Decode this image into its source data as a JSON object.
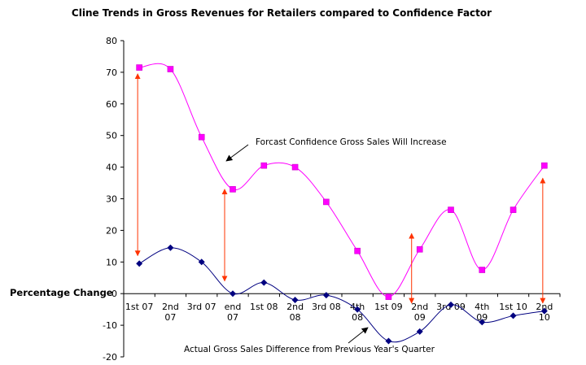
{
  "chart_data": {
    "type": "line",
    "title": "Cline Trends in Gross Revenues for Retailers compared to Confidence Factor",
    "ylabel": "Percentage Change",
    "xlabel": "",
    "ylim": [
      -20,
      80
    ],
    "yticks": [
      80,
      70,
      60,
      50,
      40,
      30,
      20,
      10,
      0,
      -10,
      -20
    ],
    "grid": false,
    "categories": [
      [
        "1st 07"
      ],
      [
        "2nd",
        "07"
      ],
      [
        "3rd 07"
      ],
      [
        "end",
        "07"
      ],
      [
        "1st 08"
      ],
      [
        "2nd",
        "08"
      ],
      [
        "3rd 08"
      ],
      [
        "4th",
        "08"
      ],
      [
        "1st 09"
      ],
      [
        "2nd",
        "09"
      ],
      [
        "3rd 09"
      ],
      [
        "4th",
        "09"
      ],
      [
        "1st 10"
      ],
      [
        "2nd",
        "10"
      ]
    ],
    "series": [
      {
        "color": "#ff00ff",
        "marker": "square",
        "values": [
          71.5,
          71,
          49.5,
          33,
          40.5,
          40,
          29,
          13.5,
          -1,
          14,
          26.5,
          7.5,
          26.5,
          40.5
        ]
      },
      {
        "color": "#000080",
        "marker": "diamond",
        "values": [
          9.5,
          14.5,
          10,
          0,
          3.5,
          -2,
          -0.5,
          -5,
          -15,
          -12,
          -3.5,
          -9,
          -7,
          -5.5
        ]
      }
    ],
    "annotations": [
      {
        "text": "Forcast Confidence Gross Sales Will Increase",
        "series": 0
      },
      {
        "text": "Actual Gross Sales Difference from Previous Year's Quarter",
        "series": 1
      }
    ],
    "gap_arrows": {
      "color": "#ff3300",
      "indices": [
        0,
        3,
        9,
        13
      ],
      "ranges": [
        [
          69.5,
          12
        ],
        [
          33,
          4
        ],
        [
          19,
          -3
        ],
        [
          36.5,
          -3
        ]
      ]
    }
  }
}
